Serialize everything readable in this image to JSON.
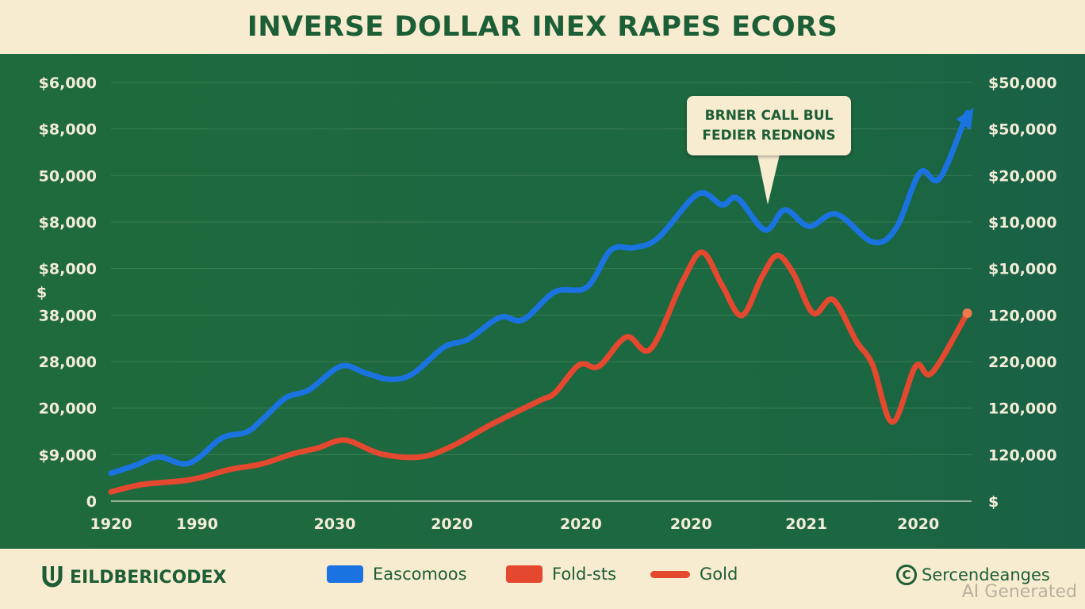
{
  "chart_data": {
    "type": "line",
    "title": "INVERSE DOLLAR INEX RAPES ECORS",
    "x_tick_labels": [
      "1920",
      "1990",
      "2030",
      "2020",
      "2020",
      "2020",
      "2021",
      "2020"
    ],
    "x_tick_positions": [
      0,
      10,
      26,
      39.6,
      54.6,
      67.4,
      80.8,
      93.8
    ],
    "x_range": [
      0,
      100
    ],
    "y_range": [
      0,
      9
    ],
    "left_axis_labels": [
      "0",
      "$9,000",
      "20,000",
      "28,000",
      "38,000",
      "$8,000",
      "$8,000",
      "50,000",
      "$8,000",
      "$6,000"
    ],
    "left_axis_extra": "$",
    "right_axis_labels": [
      "$",
      "120,000",
      "120,000",
      "220,000",
      "120,000",
      "$10,000",
      "$10,000",
      "$20,000",
      "$50,000",
      "$50,000"
    ],
    "grid": true,
    "annotation": {
      "line1": "BRNER CALL BUL",
      "line2": "FEDIER REDNONS"
    },
    "series": [
      {
        "name": "Eascomoos",
        "color": "#1a73e0",
        "points": [
          [
            0,
            0.6
          ],
          [
            2.8,
            0.77
          ],
          [
            5.5,
            0.95
          ],
          [
            8.3,
            0.8
          ],
          [
            10.1,
            0.92
          ],
          [
            12.9,
            1.36
          ],
          [
            15.7,
            1.48
          ],
          [
            17.5,
            1.74
          ],
          [
            20.3,
            2.22
          ],
          [
            23,
            2.39
          ],
          [
            26.7,
            2.9
          ],
          [
            29.5,
            2.76
          ],
          [
            32.3,
            2.62
          ],
          [
            35,
            2.73
          ],
          [
            38.7,
            3.31
          ],
          [
            41.5,
            3.48
          ],
          [
            45.2,
            3.95
          ],
          [
            47.9,
            3.9
          ],
          [
            51.6,
            4.5
          ],
          [
            55.3,
            4.6
          ],
          [
            58.1,
            5.4
          ],
          [
            60.8,
            5.45
          ],
          [
            63.6,
            5.66
          ],
          [
            68.2,
            6.6
          ],
          [
            71,
            6.37
          ],
          [
            72.8,
            6.51
          ],
          [
            76,
            5.83
          ],
          [
            78.3,
            6.26
          ],
          [
            81.1,
            5.91
          ],
          [
            84.3,
            6.17
          ],
          [
            88.5,
            5.57
          ],
          [
            91.2,
            5.86
          ],
          [
            94,
            7.06
          ],
          [
            96.3,
            6.94
          ],
          [
            99.5,
            8.35
          ]
        ]
      },
      {
        "name": "Fold-sts",
        "color": "#e4482f",
        "points": [
          [
            0,
            0.2
          ],
          [
            3.7,
            0.36
          ],
          [
            9.2,
            0.46
          ],
          [
            13.8,
            0.68
          ],
          [
            17.5,
            0.8
          ],
          [
            21.2,
            1.02
          ],
          [
            24,
            1.14
          ],
          [
            27.2,
            1.31
          ],
          [
            31.3,
            1.02
          ],
          [
            35.9,
            0.95
          ],
          [
            39.6,
            1.18
          ],
          [
            44.2,
            1.65
          ],
          [
            49.8,
            2.16
          ],
          [
            51.6,
            2.33
          ],
          [
            54.4,
            2.93
          ],
          [
            56.7,
            2.9
          ],
          [
            59.9,
            3.53
          ],
          [
            62.7,
            3.27
          ],
          [
            66.4,
            4.72
          ],
          [
            68.7,
            5.35
          ],
          [
            71,
            4.64
          ],
          [
            73.3,
            3.99
          ],
          [
            75.6,
            4.81
          ],
          [
            77.4,
            5.28
          ],
          [
            79.3,
            4.89
          ],
          [
            81.6,
            4.04
          ],
          [
            83.9,
            4.33
          ],
          [
            86.6,
            3.44
          ],
          [
            88.5,
            2.93
          ],
          [
            90.8,
            1.7
          ],
          [
            93.5,
            2.9
          ],
          [
            95.4,
            2.76
          ],
          [
            99.5,
            4.04
          ]
        ]
      }
    ],
    "legend": [
      {
        "label": "Eascomoos",
        "color": "#1a73e0",
        "shape": "box"
      },
      {
        "label": "Fold-sts",
        "color": "#e4482f",
        "shape": "box"
      },
      {
        "label": "Gold",
        "color": "#e4482f",
        "shape": "line"
      }
    ],
    "legend_placement": "bottom"
  },
  "footer": {
    "brand": "EILDBERICODEX",
    "source": "Sercendeanges",
    "watermark": "AI Generated"
  }
}
